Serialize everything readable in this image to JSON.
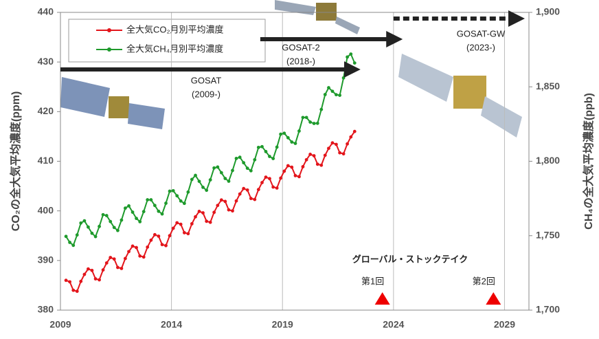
{
  "chart_data": {
    "type": "line",
    "xlim": [
      2009,
      2030.1
    ],
    "xticks": [
      2009,
      2014,
      2019,
      2024,
      2029
    ],
    "ylim": [
      380,
      440
    ],
    "yticks": [
      380,
      390,
      400,
      410,
      420,
      430,
      440
    ],
    "y2lim": [
      1700,
      1900
    ],
    "y2ticks": [
      {
        "value": 1700,
        "label": "1,700"
      },
      {
        "value": 1750,
        "label": "1,750"
      },
      {
        "value": 1800,
        "label": "1,800"
      },
      {
        "value": 1850,
        "label": "1,850"
      },
      {
        "value": 1900,
        "label": "1,900"
      }
    ],
    "ylabel": "CO₂の全大気平均濃度(ppm)",
    "y2label": "CH₄の全大気平均濃度(ppb)",
    "grid": "x",
    "x": [
      2009.25,
      2009.42,
      2009.58,
      2009.75,
      2009.92,
      2010.08,
      2010.25,
      2010.42,
      2010.58,
      2010.75,
      2010.92,
      2011.08,
      2011.25,
      2011.42,
      2011.58,
      2011.75,
      2011.92,
      2012.08,
      2012.25,
      2012.42,
      2012.58,
      2012.75,
      2012.92,
      2013.08,
      2013.25,
      2013.42,
      2013.58,
      2013.75,
      2013.92,
      2014.08,
      2014.25,
      2014.42,
      2014.58,
      2014.75,
      2014.92,
      2015.08,
      2015.25,
      2015.42,
      2015.58,
      2015.75,
      2015.92,
      2016.08,
      2016.25,
      2016.42,
      2016.58,
      2016.75,
      2016.92,
      2017.08,
      2017.25,
      2017.42,
      2017.58,
      2017.75,
      2017.92,
      2018.08,
      2018.25,
      2018.42,
      2018.58,
      2018.75,
      2018.92,
      2019.08,
      2019.25,
      2019.42,
      2019.58,
      2019.75,
      2019.92,
      2020.08,
      2020.25,
      2020.42,
      2020.58,
      2020.75,
      2020.92,
      2021.08,
      2021.25,
      2021.42,
      2021.58,
      2021.75,
      2021.92,
      2022.08,
      2022.25
    ],
    "series": [
      {
        "name": "全大気CO₂月別平均濃度",
        "color": "#e3151b",
        "values": [
          386.0,
          385.7,
          384.0,
          383.8,
          385.8,
          387.2,
          388.3,
          388.0,
          386.3,
          386.1,
          388.1,
          389.5,
          390.6,
          390.3,
          388.6,
          388.4,
          390.4,
          391.8,
          392.9,
          392.6,
          390.9,
          390.7,
          392.7,
          394.1,
          395.2,
          394.9,
          393.2,
          393.0,
          395.0,
          396.5,
          397.6,
          397.3,
          395.6,
          395.4,
          397.4,
          398.8,
          399.9,
          399.6,
          397.9,
          397.7,
          399.7,
          401.1,
          402.2,
          401.9,
          400.2,
          400.0,
          402.0,
          403.4,
          404.5,
          404.2,
          402.5,
          402.3,
          404.3,
          405.7,
          406.8,
          406.5,
          404.8,
          404.6,
          406.6,
          408.0,
          409.1,
          408.8,
          407.1,
          406.9,
          408.9,
          410.3,
          411.4,
          411.1,
          409.4,
          409.2,
          411.2,
          412.6,
          413.7,
          413.4,
          411.7,
          411.5,
          413.5,
          414.9,
          416.0
        ]
      },
      {
        "name": "全大気CH₄月別平均濃度",
        "color": "#1e9a2c",
        "axis": "y2",
        "values": [
          1749.5,
          1745.5,
          1743.5,
          1750.5,
          1758.5,
          1760,
          1755.8,
          1751.6,
          1749.4,
          1756.2,
          1764.1,
          1763.5,
          1759.5,
          1755.5,
          1753.5,
          1760.5,
          1768.5,
          1770,
          1765.8,
          1761.6,
          1759.4,
          1766.2,
          1774.1,
          1774.1,
          1770.3,
          1766.4,
          1764.6,
          1771.8,
          1779.9,
          1780.2,
          1776.8,
          1773.3,
          1771.7,
          1779.3,
          1787.8,
          1790.5,
          1786.5,
          1782.5,
          1780.5,
          1787.5,
          1795.5,
          1796.1,
          1792.3,
          1788.4,
          1786.6,
          1793.8,
          1801.9,
          1802.7,
          1799.0,
          1795.3,
          1793.6,
          1801.0,
          1809.3,
          1809.8,
          1806.5,
          1803.2,
          1801.8,
          1809.5,
          1818.2,
          1818.8,
          1815.8,
          1812.9,
          1812.0,
          1820.3,
          1829.4,
          1829.4,
          1826.3,
          1825.4,
          1825.5,
          1834.8,
          1844.8,
          1849.4,
          1847.0,
          1844.7,
          1844.3,
          1856,
          1870,
          1872,
          1866
        ]
      }
    ],
    "missions": [
      {
        "name": "GOSAT",
        "period": "(2009-)",
        "start": 2009,
        "end": 2022.7
      },
      {
        "name": "GOSAT-2",
        "period": "(2018-)",
        "start": 2018,
        "end": 2024.6
      },
      {
        "name": "GOSAT-GW",
        "period": "(2023-)",
        "start": 2024,
        "end": 2030.1
      }
    ],
    "stocktake": {
      "title": "グローバル・ストックテイク",
      "events": [
        {
          "label": "第1回",
          "x": 2023.5
        },
        {
          "label": "第2回",
          "x": 2028.5
        }
      ]
    }
  }
}
